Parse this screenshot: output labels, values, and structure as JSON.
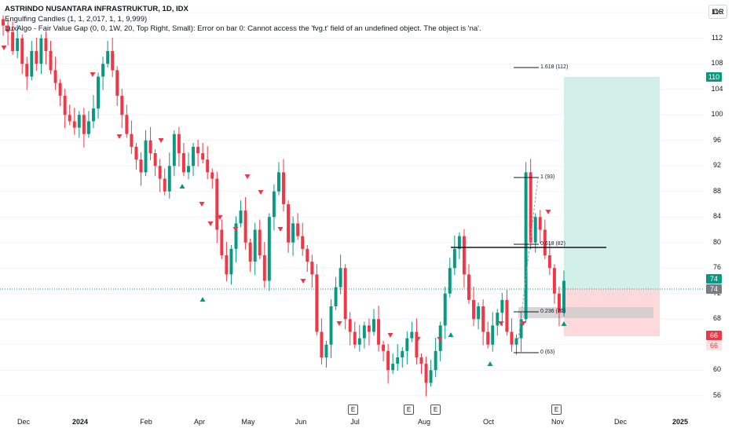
{
  "legend": {
    "title": "ASTRINDO NUSANTARA INFRASTRUKTUR, 1D, IDX",
    "indicator1": "Engulfing Candles (1, 1, 2,017, 1, 1, 9,999)",
    "indicator2": "LuxAlgo - Fair Value Gap (0, 0, 1W, 20, Top Right, Small): Error on bar 0: Cannot access the 'fvg.t' field of an undefined object. The object is 'na'."
  },
  "currency": "IDR",
  "y_axis": {
    "min": 54,
    "max": 118,
    "ticks": [
      "116",
      "112",
      "108",
      "104",
      "100",
      "96",
      "92",
      "88",
      "84",
      "80",
      "76",
      "72",
      "68",
      "64",
      "60",
      "56"
    ]
  },
  "x_axis": {
    "ticks": [
      {
        "label": "Dec",
        "bold": false
      },
      {
        "label": "2024",
        "bold": true
      },
      {
        "label": "Feb",
        "bold": false
      },
      {
        "label": "Apr",
        "bold": false
      },
      {
        "label": "May",
        "bold": false
      },
      {
        "label": "Jun",
        "bold": false
      },
      {
        "label": "Jul",
        "bold": false
      },
      {
        "label": "Aug",
        "bold": false
      },
      {
        "label": "Oct",
        "bold": false
      },
      {
        "label": "Nov",
        "bold": false
      },
      {
        "label": "Dec",
        "bold": false
      },
      {
        "label": "2025",
        "bold": true
      }
    ]
  },
  "price_tags": [
    {
      "label": "110",
      "color": "#089981"
    },
    {
      "label": "74",
      "color": "#089981"
    },
    {
      "label": "74",
      "color": "#787b86"
    },
    {
      "label": "66",
      "color": "#f23645"
    },
    {
      "label": "66",
      "style": "lite"
    }
  ],
  "fib_labels": [
    "1.618 (112)",
    "1 (93)",
    "0.618 (82)",
    "0.236 (70)",
    "0 (63)"
  ],
  "earnings_badge": "E",
  "colors": {
    "up": "#089981",
    "down": "#f23645",
    "target": "#d2efe9",
    "stop": "#fdd9dc",
    "grid": "#f0f3fa"
  },
  "chart_data": {
    "type": "candlestick",
    "symbol": "ASTRINDO NUSANTARA INFRASTRUKTUR",
    "timeframe": "1D",
    "exchange": "IDX",
    "ylim": [
      54,
      118
    ],
    "last_close": 74,
    "closes": [
      114,
      113,
      110,
      112,
      108,
      106,
      110,
      108,
      112,
      110,
      107,
      105,
      103,
      100,
      99,
      98,
      100,
      97,
      99,
      101,
      106,
      108,
      110,
      107,
      103,
      100,
      97,
      95,
      93,
      91,
      96,
      94,
      92,
      90,
      88,
      92,
      97,
      94,
      91,
      92,
      95,
      94,
      93,
      91,
      90,
      82,
      78,
      75,
      79,
      83,
      85,
      80,
      77,
      82,
      78,
      74,
      84,
      88,
      91,
      86,
      80,
      83,
      81,
      79,
      77,
      75,
      66,
      62,
      64,
      70,
      73,
      76,
      68,
      66,
      64,
      65,
      67,
      66,
      68,
      64,
      63,
      60,
      61,
      62,
      63,
      65,
      66,
      62,
      61,
      58,
      60,
      63,
      67,
      72,
      76,
      79,
      81,
      75,
      71,
      68,
      70,
      66,
      64,
      67,
      69,
      71,
      66,
      64,
      65,
      68,
      91,
      80,
      84,
      82,
      78,
      76,
      72,
      69,
      74
    ],
    "fib_levels": [
      {
        "ratio": "1.618",
        "price": 112
      },
      {
        "ratio": "1",
        "price": 93
      },
      {
        "ratio": "0.618",
        "price": 82
      },
      {
        "ratio": "0.236",
        "price": 70
      },
      {
        "ratio": "0",
        "price": 63
      }
    ],
    "horizontal_line": 81,
    "long_position": {
      "entry": 74,
      "target": 110,
      "stop": 66
    }
  }
}
